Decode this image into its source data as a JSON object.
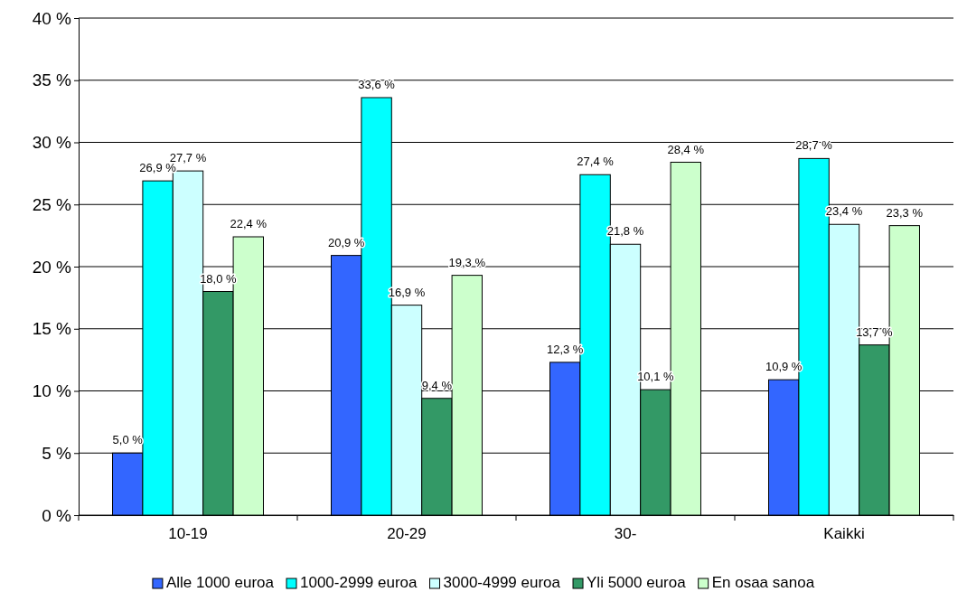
{
  "chart_data": {
    "type": "bar",
    "categories": [
      "10-19",
      "20-29",
      "30-",
      "Kaikki"
    ],
    "series": [
      {
        "name": "Alle 1000 euroa",
        "color": "#3366ff",
        "values": [
          5.0,
          20.9,
          12.3,
          10.9
        ],
        "value_labels": [
          "5,0 %",
          "20,9 %",
          "12,3 %",
          "10,9 %"
        ]
      },
      {
        "name": "1000-2999 euroa",
        "color": "#00ffff",
        "values": [
          26.9,
          33.6,
          27.4,
          28.7
        ],
        "value_labels": [
          "26,9 %",
          "33,6 %",
          "27,4 %",
          "28,7 %"
        ]
      },
      {
        "name": "3000-4999 euroa",
        "color": "#ccffff",
        "values": [
          27.7,
          16.9,
          21.8,
          23.4
        ],
        "value_labels": [
          "27,7 %",
          "16,9 %",
          "21,8 %",
          "23,4 %"
        ]
      },
      {
        "name": "Yli 5000 euroa",
        "color": "#339966",
        "values": [
          18.0,
          9.4,
          10.1,
          13.7
        ],
        "value_labels": [
          "18,0 %",
          "9,4 %",
          "10,1 %",
          "13,7 %"
        ]
      },
      {
        "name": "En osaa sanoa",
        "color": "#ccffcc",
        "values": [
          22.4,
          19.3,
          28.4,
          23.3
        ],
        "value_labels": [
          "22,4 %",
          "19,3 %",
          "28,4 %",
          "23,3 %"
        ]
      }
    ],
    "ylim": [
      0,
      40
    ],
    "yticks": [
      {
        "value": 0,
        "label": "0 %"
      },
      {
        "value": 5,
        "label": "5 %"
      },
      {
        "value": 10,
        "label": "10 %"
      },
      {
        "value": 15,
        "label": "15 %"
      },
      {
        "value": 20,
        "label": "20 %"
      },
      {
        "value": 25,
        "label": "25 %"
      },
      {
        "value": 30,
        "label": "30 %"
      },
      {
        "value": 35,
        "label": "35 %"
      },
      {
        "value": 40,
        "label": "40 %"
      }
    ],
    "grid": "y",
    "legend": "bottom"
  }
}
